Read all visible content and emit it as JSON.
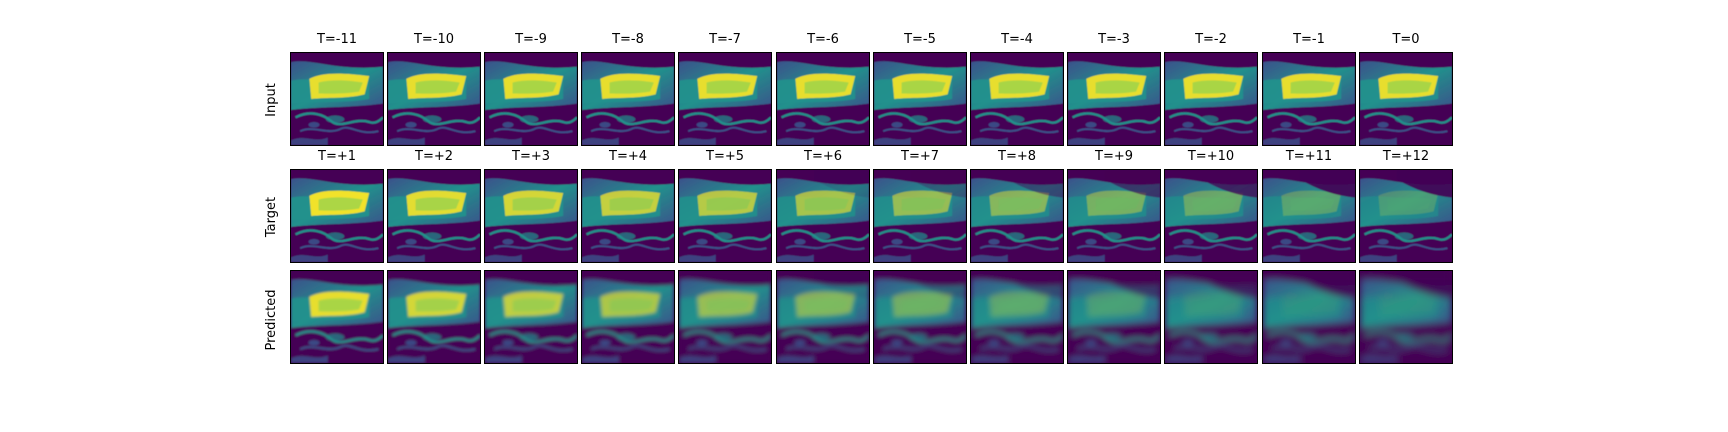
{
  "figure": {
    "rows": [
      {
        "label": "Input",
        "panels": [
          "T=-11",
          "T=-10",
          "T=-9",
          "T=-8",
          "T=-7",
          "T=-6",
          "T=-5",
          "T=-4",
          "T=-3",
          "T=-2",
          "T=-1",
          "T=0"
        ]
      },
      {
        "label": "Target",
        "panels": [
          "T=+1",
          "T=+2",
          "T=+3",
          "T=+4",
          "T=+5",
          "T=+6",
          "T=+7",
          "T=+8",
          "T=+9",
          "T=+10",
          "T=+11",
          "T=+12"
        ]
      },
      {
        "label": "Predicted",
        "panels": [
          "",
          "",
          "",
          "",
          "",
          "",
          "",
          "",
          "",
          "",
          "",
          ""
        ]
      }
    ],
    "colormap": [
      "#440154",
      "#3b528b",
      "#21918c",
      "#5ec962",
      "#fde725"
    ]
  }
}
